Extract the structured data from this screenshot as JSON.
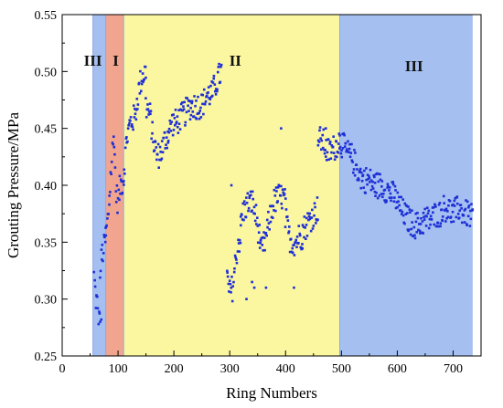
{
  "chart_data": {
    "type": "scatter",
    "title": "",
    "xlabel": "Ring Numbers",
    "ylabel": "Grouting Pressure/MPa",
    "xlim": [
      0,
      750
    ],
    "ylim": [
      0.25,
      0.55
    ],
    "xticks": [
      0,
      100,
      200,
      300,
      400,
      500,
      600,
      700
    ],
    "yticks": [
      0.25,
      0.3,
      0.35,
      0.4,
      0.45,
      0.5,
      0.55
    ],
    "grid": false,
    "legend": "none",
    "colors": {
      "points": "#1f2fd6",
      "zone_III": "#a5c0f0",
      "zone_I": "#f2a58e",
      "zone_II": "#fbf7a0",
      "boundary": "#8fa8e0"
    },
    "regions": [
      {
        "label": "III",
        "x_start": 55,
        "x_end": 78,
        "color": "#a5c0f0",
        "label_x": 55,
        "label_y": 0.51
      },
      {
        "label": "I",
        "x_start": 78,
        "x_end": 110,
        "color": "#f2a58e",
        "label_x": 96,
        "label_y": 0.51
      },
      {
        "label": "II",
        "x_start": 110,
        "x_end": 497,
        "color": "#fbf7a0",
        "label_x": 310,
        "label_y": 0.51
      },
      {
        "label": "III",
        "x_start": 497,
        "x_end": 735,
        "color": "#a5c0f0",
        "label_x": 630,
        "label_y": 0.505
      }
    ],
    "series": [
      {
        "segments": [
          {
            "x0": 57,
            "x1": 78,
            "pts": [
              [
                57,
                0.32
              ],
              [
                60,
                0.3
              ],
              [
                63,
                0.295
              ],
              [
                66,
                0.28
              ],
              [
                69,
                0.33
              ],
              [
                72,
                0.34
              ],
              [
                75,
                0.345
              ],
              [
                78,
                0.355
              ]
            ]
          },
          {
            "x0": 78,
            "x1": 110,
            "pts": [
              [
                78,
                0.355
              ],
              [
                82,
                0.37
              ],
              [
                86,
                0.4
              ],
              [
                90,
                0.43
              ],
              [
                93,
                0.445
              ],
              [
                96,
                0.395
              ],
              [
                100,
                0.385
              ],
              [
                104,
                0.4
              ],
              [
                110,
                0.405
              ]
            ]
          },
          {
            "x0": 110,
            "x1": 150,
            "pts": [
              [
                110,
                0.41
              ],
              [
                115,
                0.44
              ],
              [
                122,
                0.455
              ],
              [
                130,
                0.46
              ],
              [
                136,
                0.48
              ],
              [
                142,
                0.495
              ],
              [
                150,
                0.5
              ]
            ]
          },
          {
            "x0": 150,
            "x1": 190,
            "pts": [
              [
                150,
                0.47
              ],
              [
                158,
                0.46
              ],
              [
                163,
                0.44
              ],
              [
                170,
                0.425
              ],
              [
                178,
                0.43
              ],
              [
                184,
                0.44
              ],
              [
                190,
                0.445
              ]
            ]
          },
          {
            "x0": 190,
            "x1": 230,
            "pts": [
              [
                190,
                0.445
              ],
              [
                197,
                0.455
              ],
              [
                205,
                0.455
              ],
              [
                213,
                0.46
              ],
              [
                222,
                0.465
              ],
              [
                230,
                0.47
              ]
            ]
          },
          {
            "x0": 230,
            "x1": 285,
            "pts": [
              [
                230,
                0.47
              ],
              [
                240,
                0.47
              ],
              [
                250,
                0.47
              ],
              [
                260,
                0.48
              ],
              [
                268,
                0.48
              ],
              [
                276,
                0.49
              ],
              [
                285,
                0.5
              ]
            ]
          },
          {
            "x0": 295,
            "x1": 320,
            "pts": [
              [
                295,
                0.32
              ],
              [
                300,
                0.305
              ],
              [
                305,
                0.31
              ],
              [
                310,
                0.33
              ],
              [
                315,
                0.35
              ],
              [
                320,
                0.355
              ]
            ]
          },
          {
            "x0": 320,
            "x1": 355,
            "pts": [
              [
                320,
                0.37
              ],
              [
                327,
                0.38
              ],
              [
                334,
                0.385
              ],
              [
                341,
                0.385
              ],
              [
                348,
                0.37
              ],
              [
                355,
                0.35
              ]
            ]
          },
          {
            "x0": 355,
            "x1": 400,
            "pts": [
              [
                355,
                0.34
              ],
              [
                363,
                0.35
              ],
              [
                371,
                0.37
              ],
              [
                379,
                0.385
              ],
              [
                387,
                0.39
              ],
              [
                394,
                0.39
              ],
              [
                400,
                0.385
              ]
            ]
          },
          {
            "x0": 400,
            "x1": 430,
            "pts": [
              [
                400,
                0.37
              ],
              [
                406,
                0.355
              ],
              [
                412,
                0.35
              ],
              [
                418,
                0.35
              ],
              [
                424,
                0.355
              ],
              [
                430,
                0.355
              ]
            ]
          },
          {
            "x0": 430,
            "x1": 458,
            "pts": [
              [
                430,
                0.36
              ],
              [
                437,
                0.365
              ],
              [
                444,
                0.37
              ],
              [
                451,
                0.375
              ],
              [
                458,
                0.38
              ]
            ]
          },
          {
            "x0": 458,
            "x1": 497,
            "pts": [
              [
                458,
                0.44
              ],
              [
                466,
                0.44
              ],
              [
                474,
                0.43
              ],
              [
                482,
                0.43
              ],
              [
                490,
                0.435
              ],
              [
                497,
                0.44
              ]
            ]
          },
          {
            "x0": 497,
            "x1": 560,
            "pts": [
              [
                497,
                0.44
              ],
              [
                508,
                0.43
              ],
              [
                518,
                0.425
              ],
              [
                528,
                0.415
              ],
              [
                538,
                0.405
              ],
              [
                548,
                0.405
              ],
              [
                560,
                0.4
              ]
            ]
          },
          {
            "x0": 560,
            "x1": 620,
            "pts": [
              [
                560,
                0.4
              ],
              [
                572,
                0.4
              ],
              [
                584,
                0.395
              ],
              [
                596,
                0.39
              ],
              [
                605,
                0.38
              ],
              [
                612,
                0.375
              ],
              [
                620,
                0.37
              ]
            ]
          },
          {
            "x0": 620,
            "x1": 680,
            "pts": [
              [
                620,
                0.37
              ],
              [
                630,
                0.365
              ],
              [
                640,
                0.365
              ],
              [
                650,
                0.37
              ],
              [
                660,
                0.37
              ],
              [
                670,
                0.375
              ],
              [
                680,
                0.375
              ]
            ]
          },
          {
            "x0": 680,
            "x1": 735,
            "pts": [
              [
                680,
                0.38
              ],
              [
                690,
                0.38
              ],
              [
                700,
                0.375
              ],
              [
                710,
                0.38
              ],
              [
                720,
                0.375
              ],
              [
                728,
                0.375
              ],
              [
                735,
                0.37
              ]
            ]
          }
        ],
        "outliers": [
          [
            68,
            0.28
          ],
          [
            70,
            0.282
          ],
          [
            303,
            0.4
          ],
          [
            340,
            0.315
          ],
          [
            344,
            0.31
          ],
          [
            365,
            0.31
          ],
          [
            392,
            0.45
          ],
          [
            415,
            0.31
          ],
          [
            330,
            0.3
          ],
          [
            472,
            0.45
          ]
        ],
        "noise": 0.012
      }
    ]
  }
}
